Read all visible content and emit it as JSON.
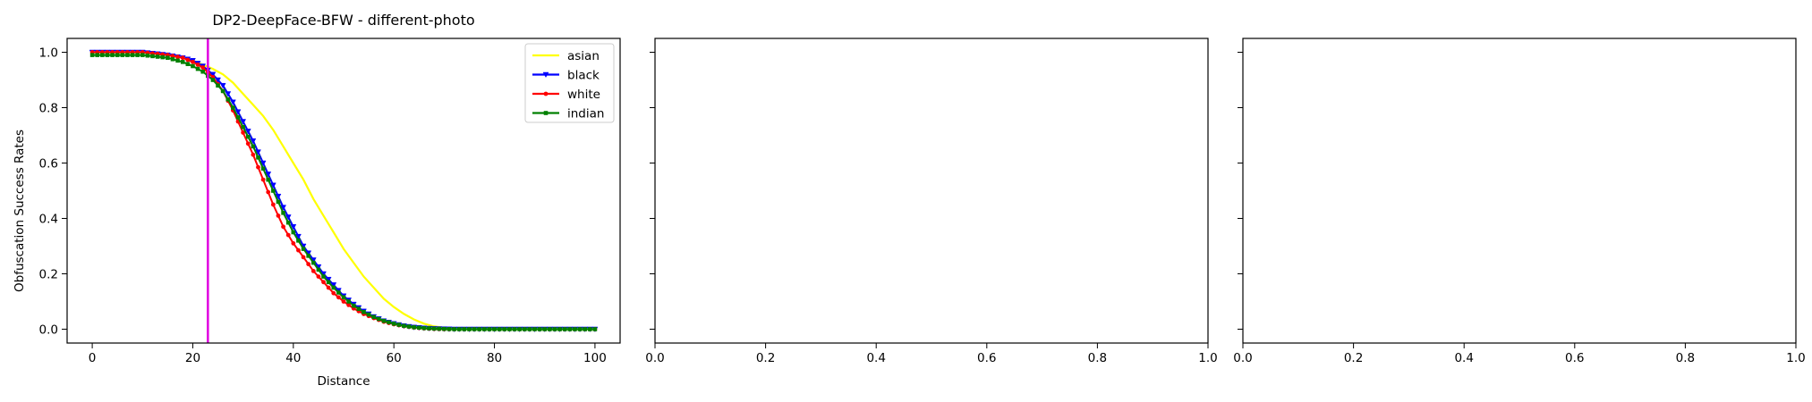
{
  "chart_data": [
    {
      "type": "line",
      "title": "DP2-DeepFace-BFW - different-photo",
      "xlabel": "Distance",
      "ylabel": "Obfuscation Success Rates",
      "xlim": [
        -5,
        105
      ],
      "ylim": [
        -0.05,
        1.05
      ],
      "xticks": [
        "0",
        "20",
        "40",
        "60",
        "80",
        "100"
      ],
      "yticks": [
        "0.0",
        "0.2",
        "0.4",
        "0.6",
        "0.8",
        "1.0"
      ],
      "legend_position": "top-right",
      "vline": {
        "x": 23,
        "color": "#e000e0"
      },
      "series": [
        {
          "name": "asian",
          "color": "#ffff00",
          "marker": "none",
          "points": [
            [
              0,
              1.0
            ],
            [
              10,
              1.0
            ],
            [
              15,
              0.99
            ],
            [
              18,
              0.98
            ],
            [
              20,
              0.97
            ],
            [
              22,
              0.955
            ],
            [
              24,
              0.94
            ],
            [
              26,
              0.92
            ],
            [
              28,
              0.89
            ],
            [
              30,
              0.85
            ],
            [
              32,
              0.81
            ],
            [
              34,
              0.77
            ],
            [
              36,
              0.72
            ],
            [
              38,
              0.66
            ],
            [
              40,
              0.6
            ],
            [
              42,
              0.54
            ],
            [
              44,
              0.47
            ],
            [
              46,
              0.41
            ],
            [
              48,
              0.35
            ],
            [
              50,
              0.29
            ],
            [
              52,
              0.24
            ],
            [
              54,
              0.19
            ],
            [
              56,
              0.15
            ],
            [
              58,
              0.11
            ],
            [
              60,
              0.08
            ],
            [
              62,
              0.055
            ],
            [
              64,
              0.035
            ],
            [
              66,
              0.02
            ],
            [
              68,
              0.01
            ],
            [
              70,
              0.005
            ],
            [
              72,
              0.0
            ],
            [
              100,
              0.0
            ]
          ]
        },
        {
          "name": "black",
          "color": "#0000ff",
          "marker": "v",
          "points": [
            [
              0,
              1.0
            ],
            [
              10,
              1.0
            ],
            [
              15,
              0.99
            ],
            [
              18,
              0.98
            ],
            [
              20,
              0.97
            ],
            [
              22,
              0.95
            ],
            [
              24,
              0.92
            ],
            [
              26,
              0.88
            ],
            [
              28,
              0.82
            ],
            [
              30,
              0.75
            ],
            [
              32,
              0.68
            ],
            [
              34,
              0.6
            ],
            [
              36,
              0.52
            ],
            [
              38,
              0.44
            ],
            [
              40,
              0.37
            ],
            [
              42,
              0.3
            ],
            [
              44,
              0.25
            ],
            [
              46,
              0.2
            ],
            [
              48,
              0.16
            ],
            [
              50,
              0.12
            ],
            [
              52,
              0.09
            ],
            [
              54,
              0.065
            ],
            [
              56,
              0.045
            ],
            [
              58,
              0.03
            ],
            [
              60,
              0.02
            ],
            [
              62,
              0.012
            ],
            [
              64,
              0.007
            ],
            [
              66,
              0.004
            ],
            [
              68,
              0.002
            ],
            [
              70,
              0.001
            ],
            [
              72,
              0.0
            ],
            [
              100,
              0.0
            ]
          ]
        },
        {
          "name": "white",
          "color": "#ff0000",
          "marker": "o",
          "points": [
            [
              0,
              1.0
            ],
            [
              10,
              1.0
            ],
            [
              15,
              0.99
            ],
            [
              18,
              0.98
            ],
            [
              20,
              0.965
            ],
            [
              22,
              0.945
            ],
            [
              24,
              0.91
            ],
            [
              26,
              0.86
            ],
            [
              28,
              0.79
            ],
            [
              30,
              0.71
            ],
            [
              32,
              0.63
            ],
            [
              34,
              0.54
            ],
            [
              36,
              0.45
            ],
            [
              38,
              0.37
            ],
            [
              40,
              0.31
            ],
            [
              42,
              0.26
            ],
            [
              44,
              0.21
            ],
            [
              46,
              0.17
            ],
            [
              48,
              0.13
            ],
            [
              50,
              0.1
            ],
            [
              52,
              0.075
            ],
            [
              54,
              0.055
            ],
            [
              56,
              0.04
            ],
            [
              58,
              0.027
            ],
            [
              60,
              0.018
            ],
            [
              62,
              0.011
            ],
            [
              64,
              0.006
            ],
            [
              66,
              0.003
            ],
            [
              68,
              0.001
            ],
            [
              70,
              0.0
            ],
            [
              100,
              0.0
            ]
          ]
        },
        {
          "name": "indian",
          "color": "#008000",
          "marker": "s",
          "points": [
            [
              0,
              0.99
            ],
            [
              10,
              0.99
            ],
            [
              15,
              0.98
            ],
            [
              18,
              0.965
            ],
            [
              20,
              0.95
            ],
            [
              22,
              0.93
            ],
            [
              24,
              0.9
            ],
            [
              26,
              0.86
            ],
            [
              28,
              0.8
            ],
            [
              30,
              0.73
            ],
            [
              32,
              0.66
            ],
            [
              34,
              0.58
            ],
            [
              36,
              0.5
            ],
            [
              38,
              0.42
            ],
            [
              40,
              0.35
            ],
            [
              42,
              0.29
            ],
            [
              44,
              0.24
            ],
            [
              46,
              0.19
            ],
            [
              48,
              0.15
            ],
            [
              50,
              0.115
            ],
            [
              52,
              0.085
            ],
            [
              54,
              0.062
            ],
            [
              56,
              0.044
            ],
            [
              58,
              0.03
            ],
            [
              60,
              0.02
            ],
            [
              62,
              0.012
            ],
            [
              64,
              0.007
            ],
            [
              66,
              0.004
            ],
            [
              68,
              0.002
            ],
            [
              70,
              0.001
            ],
            [
              72,
              0.0
            ],
            [
              100,
              0.0
            ]
          ]
        }
      ]
    },
    {
      "type": "line",
      "title": "",
      "xlim": [
        0,
        1
      ],
      "ylim": [
        -0.05,
        1.05
      ],
      "xticks": [
        "0.0",
        "0.2",
        "0.4",
        "0.6",
        "0.8",
        "1.0"
      ],
      "series": []
    },
    {
      "type": "line",
      "title": "",
      "xlim": [
        0,
        1
      ],
      "ylim": [
        -0.05,
        1.05
      ],
      "xticks": [
        "0.0",
        "0.2",
        "0.4",
        "0.6",
        "0.8",
        "1.0"
      ],
      "series": []
    }
  ]
}
